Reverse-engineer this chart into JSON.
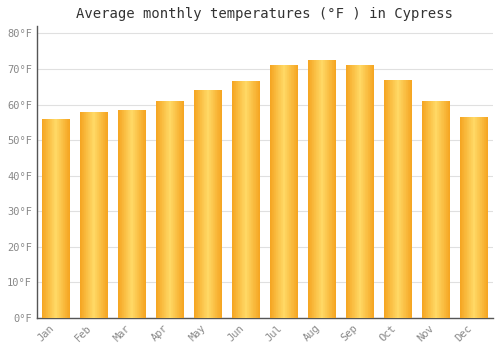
{
  "title": "Average monthly temperatures (°F ) in Cypress",
  "months": [
    "Jan",
    "Feb",
    "Mar",
    "Apr",
    "May",
    "Jun",
    "Jul",
    "Aug",
    "Sep",
    "Oct",
    "Nov",
    "Dec"
  ],
  "values": [
    56,
    58,
    58.5,
    61,
    64,
    66.5,
    71,
    72.5,
    71,
    67,
    61,
    56.5
  ],
  "bar_color_edge": "#F5A623",
  "bar_color_center": "#FFD966",
  "background_color": "#FFFFFF",
  "plot_bg_color": "#FFFFFF",
  "grid_color": "#E0E0E0",
  "spine_color": "#555555",
  "ylim": [
    0,
    82
  ],
  "yticks": [
    0,
    10,
    20,
    30,
    40,
    50,
    60,
    70,
    80
  ],
  "ytick_labels": [
    "0°F",
    "10°F",
    "20°F",
    "30°F",
    "40°F",
    "50°F",
    "60°F",
    "70°F",
    "80°F"
  ],
  "title_fontsize": 10,
  "tick_fontsize": 7.5,
  "tick_color": "#888888",
  "bar_width": 0.72
}
